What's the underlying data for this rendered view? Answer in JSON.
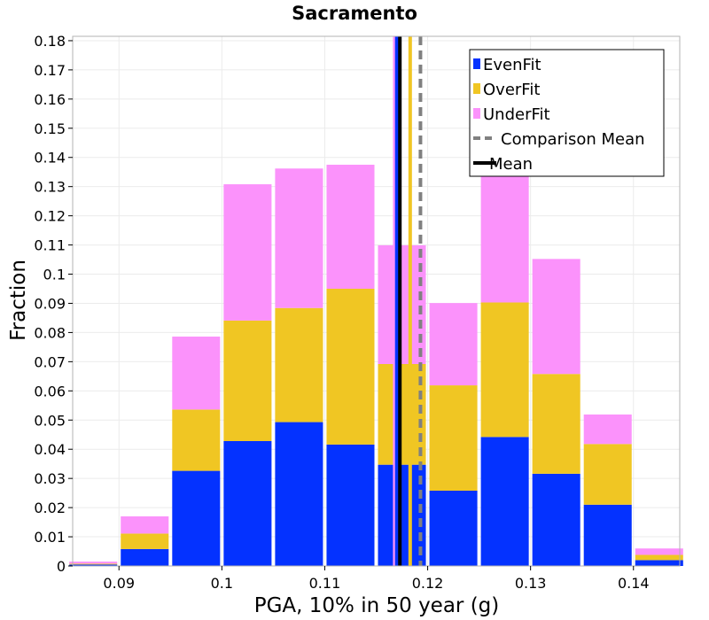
{
  "chart_data": {
    "type": "bar",
    "stacked": true,
    "title": "Sacramento",
    "xlabel": "PGA, 10% in 50 year (g)",
    "ylabel": "Fraction",
    "xlim": [
      0.0855,
      0.1445
    ],
    "ylim": [
      0,
      0.1815
    ],
    "bin_width": 0.005,
    "x_ticks": [
      {
        "value": 0.09,
        "label": "0.09"
      },
      {
        "value": 0.1,
        "label": "0.1"
      },
      {
        "value": 0.11,
        "label": "0.11"
      },
      {
        "value": 0.12,
        "label": "0.12"
      },
      {
        "value": 0.13,
        "label": "0.13"
      },
      {
        "value": 0.14,
        "label": "0.14"
      }
    ],
    "y_ticks": [
      {
        "value": 0,
        "label": "0"
      },
      {
        "value": 0.01,
        "label": "0.01"
      },
      {
        "value": 0.02,
        "label": "0.02"
      },
      {
        "value": 0.03,
        "label": "0.03"
      },
      {
        "value": 0.04,
        "label": "0.04"
      },
      {
        "value": 0.05,
        "label": "0.05"
      },
      {
        "value": 0.06,
        "label": "0.06"
      },
      {
        "value": 0.07,
        "label": "0.07"
      },
      {
        "value": 0.08,
        "label": "0.08"
      },
      {
        "value": 0.09,
        "label": "0.09"
      },
      {
        "value": 0.1,
        "label": "0.1"
      },
      {
        "value": 0.11,
        "label": "0.11"
      },
      {
        "value": 0.12,
        "label": "0.12"
      },
      {
        "value": 0.13,
        "label": "0.13"
      },
      {
        "value": 0.14,
        "label": "0.14"
      },
      {
        "value": 0.15,
        "label": "0.15"
      },
      {
        "value": 0.16,
        "label": "0.16"
      },
      {
        "value": 0.17,
        "label": "0.17"
      },
      {
        "value": 0.18,
        "label": "0.18"
      }
    ],
    "grid": true,
    "bins": [
      0.0875,
      0.0925,
      0.0975,
      0.1025,
      0.1075,
      0.1125,
      0.1175,
      0.1225,
      0.1275,
      0.1325,
      0.1375,
      0.1425
    ],
    "series": [
      {
        "name": "EvenFit",
        "color": "#0432FF",
        "values": [
          0.0005,
          0.0058,
          0.0326,
          0.0428,
          0.0493,
          0.0416,
          0.0347,
          0.0258,
          0.0442,
          0.0316,
          0.021,
          0.002
        ]
      },
      {
        "name": "OverFit",
        "color": "#F0C623",
        "values": [
          0.0003,
          0.0053,
          0.021,
          0.0413,
          0.0391,
          0.0534,
          0.0345,
          0.0361,
          0.0461,
          0.0342,
          0.0208,
          0.0018
        ]
      },
      {
        "name": "UnderFit",
        "color": "#FB92FB",
        "values": [
          0.0007,
          0.0059,
          0.025,
          0.0467,
          0.0478,
          0.0425,
          0.0407,
          0.0282,
          0.0462,
          0.0394,
          0.0101,
          0.0022
        ]
      }
    ],
    "vertical_lines": [
      {
        "name": "UnderFit mean",
        "x": 0.1168,
        "color": "#FB92FB"
      },
      {
        "name": "EvenFit mean",
        "x": 0.117,
        "color": "#0432FF"
      },
      {
        "name": "OverFit mean",
        "x": 0.1183,
        "color": "#F0C623"
      },
      {
        "name": "Comparison Mean",
        "x": 0.1193,
        "color": "#808080",
        "dashed": true
      },
      {
        "name": "Mean",
        "x": 0.1173,
        "color": "#000000"
      }
    ],
    "legend": {
      "placement": "top-right",
      "entries": [
        {
          "label": "EvenFit",
          "color": "#0432FF",
          "kind": "box"
        },
        {
          "label": "OverFit",
          "color": "#F0C623",
          "kind": "box"
        },
        {
          "label": "UnderFit",
          "color": "#FB92FB",
          "kind": "box"
        },
        {
          "label": "Comparison Mean",
          "color": "#808080",
          "kind": "dashed-line"
        },
        {
          "label": "Mean",
          "color": "#000000",
          "kind": "line"
        }
      ]
    }
  }
}
